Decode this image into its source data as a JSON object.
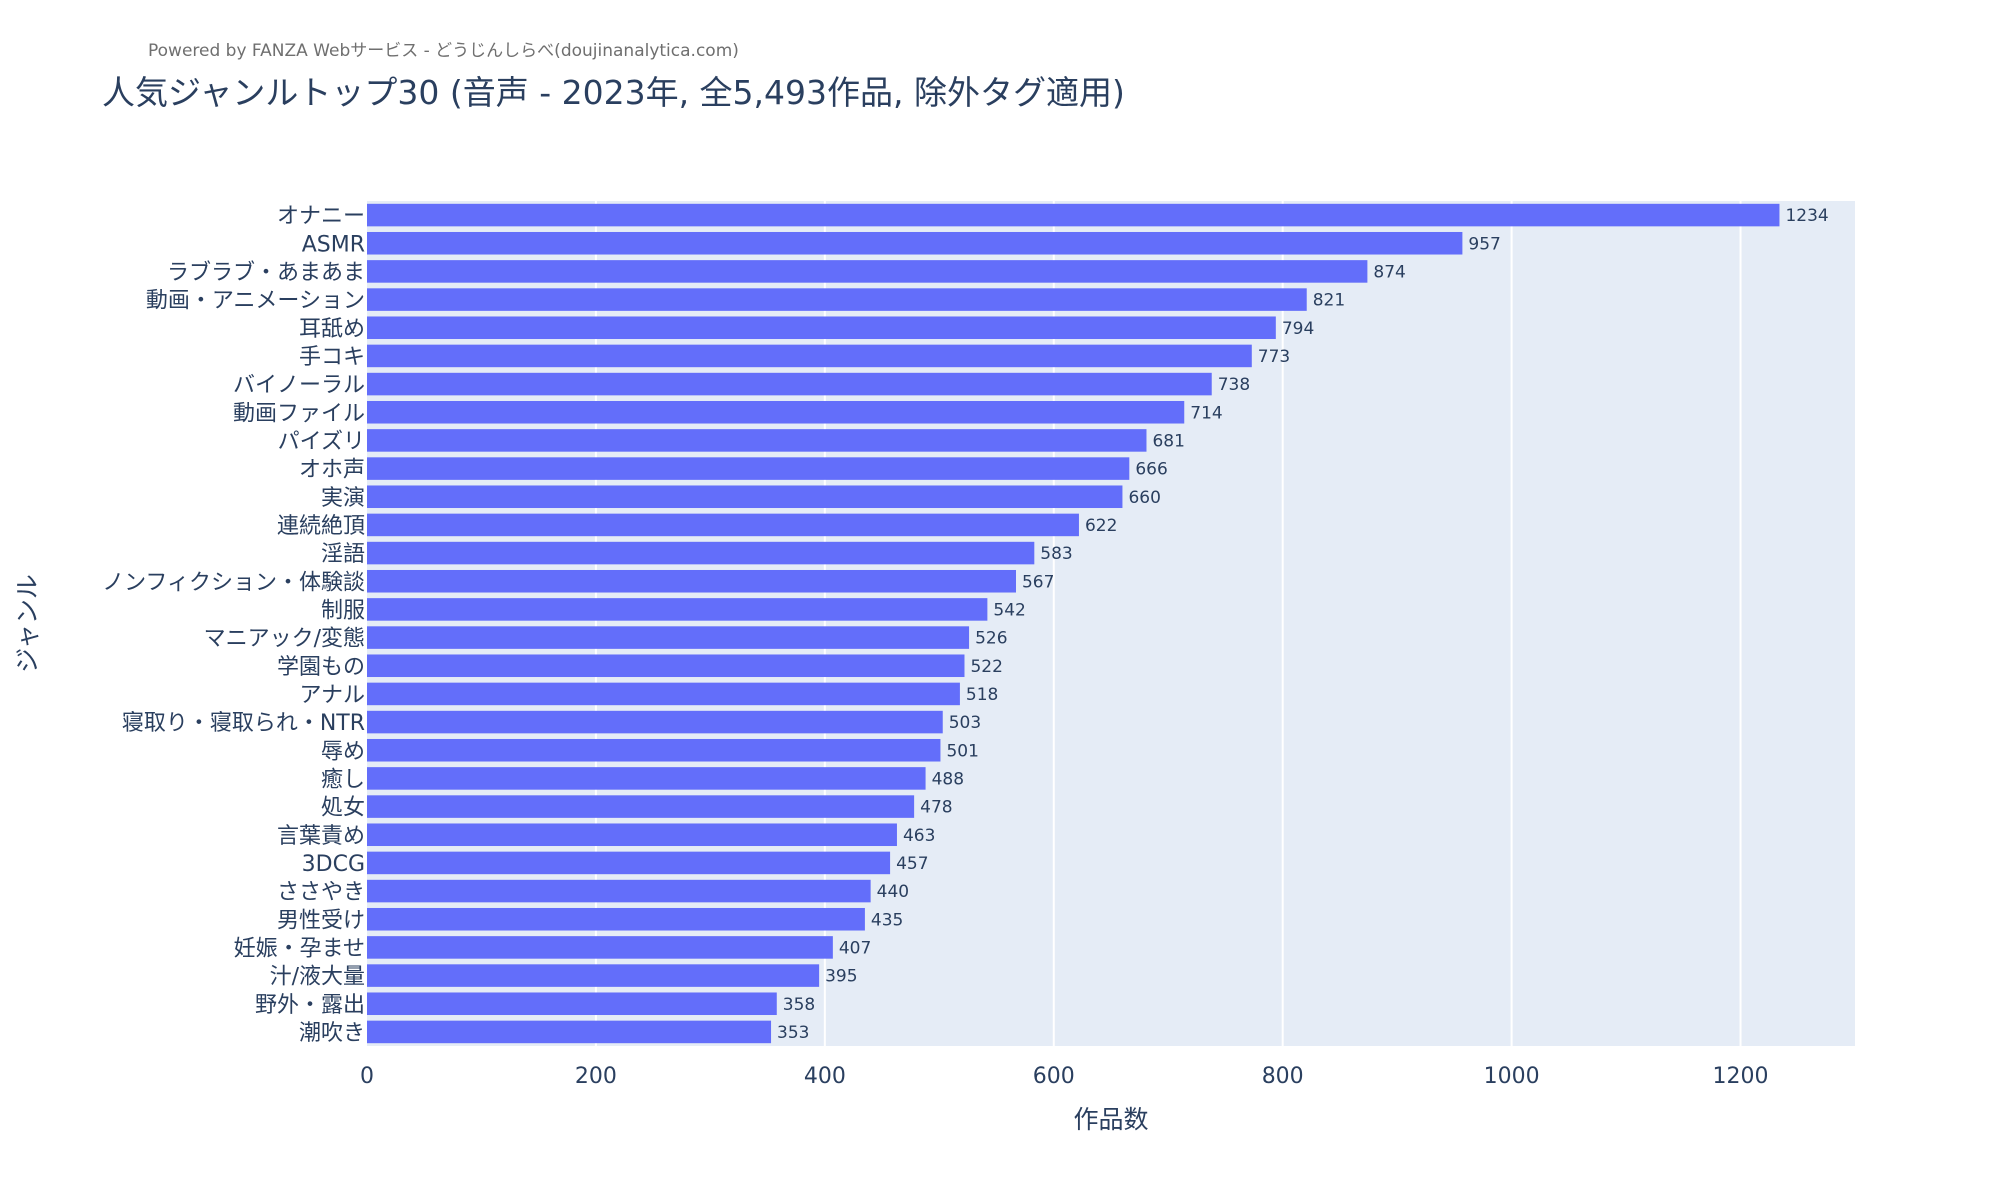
{
  "credit": "Powered by FANZA Webサービス - どうじんしらべ(doujinanalytica.com)",
  "chart_data": {
    "type": "bar",
    "orientation": "horizontal",
    "title": "人気ジャンルトップ30 (音声 - 2023年, 全5,493作品, 除外タグ適用)",
    "xlabel": "作品数",
    "ylabel": "ジャンル",
    "xlim": [
      0,
      1300
    ],
    "xticks": [
      0,
      200,
      400,
      600,
      800,
      1000,
      1200
    ],
    "grid": true,
    "bar_color": "#636efa",
    "plot_bg": "#e5ecf6",
    "categories": [
      "オナニー",
      "ASMR",
      "ラブラブ・あまあま",
      "動画・アニメーション",
      "耳舐め",
      "手コキ",
      "バイノーラル",
      "動画ファイル",
      "パイズリ",
      "オホ声",
      "実演",
      "連続絶頂",
      "淫語",
      "ノンフィクション・体験談",
      "制服",
      "マニアック/変態",
      "学園もの",
      "アナル",
      "寝取り・寝取られ・NTR",
      "辱め",
      "癒し",
      "処女",
      "言葉責め",
      "3DCG",
      "ささやき",
      "男性受け",
      "妊娠・孕ませ",
      "汁/液大量",
      "野外・露出",
      "潮吹き"
    ],
    "values": [
      1234,
      957,
      874,
      821,
      794,
      773,
      738,
      714,
      681,
      666,
      660,
      622,
      583,
      567,
      542,
      526,
      522,
      518,
      503,
      501,
      488,
      478,
      463,
      457,
      440,
      435,
      407,
      395,
      358,
      353
    ]
  }
}
